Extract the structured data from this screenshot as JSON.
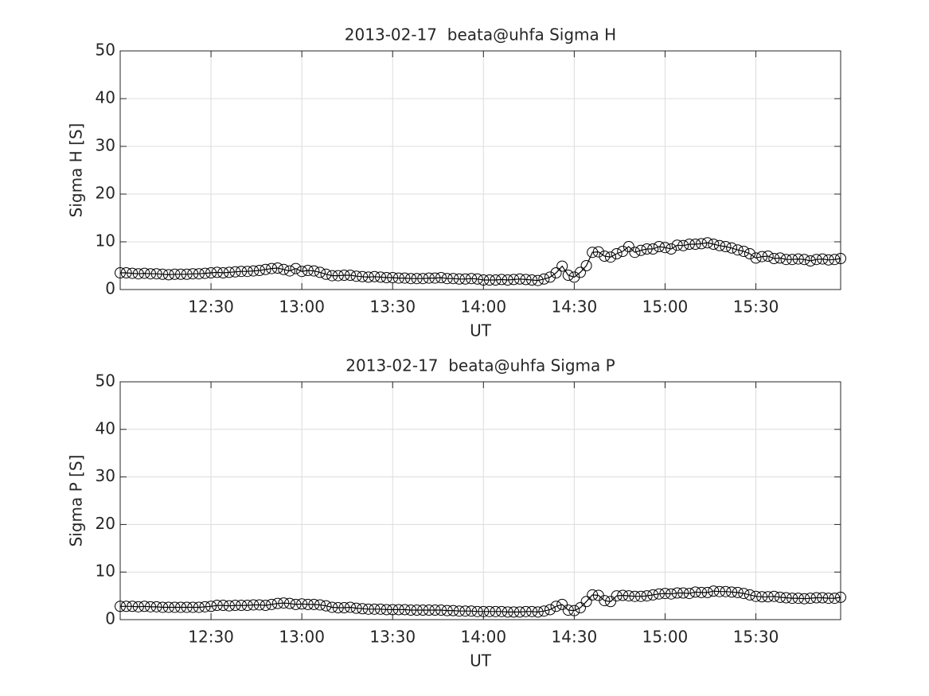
{
  "chart_data": [
    {
      "type": "line",
      "title": "2013-02-17  beata@uhfa Sigma H",
      "xlabel": "UT",
      "ylabel": "Sigma H [S]",
      "x": [
        "12:00",
        "12:02",
        "12:04",
        "12:06",
        "12:08",
        "12:10",
        "12:12",
        "12:14",
        "12:16",
        "12:18",
        "12:20",
        "12:22",
        "12:24",
        "12:26",
        "12:28",
        "12:30",
        "12:32",
        "12:34",
        "12:36",
        "12:38",
        "12:40",
        "12:42",
        "12:44",
        "12:46",
        "12:48",
        "12:50",
        "12:52",
        "12:54",
        "12:56",
        "12:58",
        "13:00",
        "13:02",
        "13:04",
        "13:06",
        "13:08",
        "13:10",
        "13:12",
        "13:14",
        "13:16",
        "13:18",
        "13:20",
        "13:22",
        "13:24",
        "13:26",
        "13:28",
        "13:30",
        "13:32",
        "13:34",
        "13:36",
        "13:38",
        "13:40",
        "13:42",
        "13:44",
        "13:46",
        "13:48",
        "13:50",
        "13:52",
        "13:54",
        "13:56",
        "13:58",
        "14:00",
        "14:02",
        "14:04",
        "14:06",
        "14:08",
        "14:10",
        "14:12",
        "14:14",
        "14:16",
        "14:18",
        "14:20",
        "14:22",
        "14:24",
        "14:26",
        "14:28",
        "14:30",
        "14:32",
        "14:34",
        "14:36",
        "14:38",
        "14:40",
        "14:42",
        "14:44",
        "14:46",
        "14:48",
        "14:50",
        "14:52",
        "14:54",
        "14:56",
        "14:58",
        "15:00",
        "15:02",
        "15:04",
        "15:06",
        "15:08",
        "15:10",
        "15:12",
        "15:14",
        "15:16",
        "15:18",
        "15:20",
        "15:22",
        "15:24",
        "15:26",
        "15:28",
        "15:30",
        "15:32",
        "15:34",
        "15:36",
        "15:38",
        "15:40",
        "15:42",
        "15:44",
        "15:46",
        "15:48",
        "15:50",
        "15:52",
        "15:54",
        "15:56",
        "15:58"
      ],
      "values": [
        3.5,
        3.5,
        3.4,
        3.3,
        3.4,
        3.3,
        3.3,
        3.2,
        3.1,
        3.2,
        3.2,
        3.2,
        3.3,
        3.3,
        3.4,
        3.5,
        3.6,
        3.5,
        3.6,
        3.7,
        3.8,
        3.8,
        3.9,
        4.0,
        4.2,
        4.4,
        4.5,
        4.2,
        3.9,
        4.4,
        3.8,
        4.0,
        3.9,
        3.6,
        3.2,
        2.9,
        2.9,
        3.0,
        3.0,
        2.8,
        2.7,
        2.6,
        2.7,
        2.6,
        2.5,
        2.5,
        2.4,
        2.4,
        2.3,
        2.3,
        2.3,
        2.4,
        2.4,
        2.5,
        2.3,
        2.3,
        2.2,
        2.2,
        2.3,
        2.2,
        2.0,
        2.0,
        2.0,
        2.1,
        2.0,
        2.1,
        2.2,
        2.1,
        2.0,
        1.9,
        2.2,
        2.6,
        3.5,
        4.9,
        3.0,
        2.6,
        3.6,
        5.0,
        7.8,
        7.9,
        7.0,
        6.8,
        7.5,
        8.0,
        9.0,
        7.8,
        8.2,
        8.5,
        8.5,
        9.0,
        8.8,
        8.5,
        9.3,
        9.2,
        9.5,
        9.5,
        9.6,
        9.8,
        9.5,
        9.2,
        9.0,
        8.7,
        8.3,
        8.0,
        7.5,
        6.6,
        6.9,
        7.0,
        6.5,
        6.6,
        6.3,
        6.3,
        6.4,
        6.3,
        6.0,
        6.3,
        6.4,
        6.2,
        6.3,
        6.5
      ],
      "color": "#000000",
      "marker": "circle",
      "xlim": [
        "12:00",
        "15:58"
      ],
      "xticks": [
        "12:30",
        "13:00",
        "13:30",
        "14:00",
        "14:30",
        "15:00",
        "15:30"
      ],
      "ylim": [
        0,
        50
      ],
      "yticks": [
        0,
        10,
        20,
        30,
        40,
        50
      ],
      "grid": true
    },
    {
      "type": "line",
      "title": "2013-02-17  beata@uhfa Sigma P",
      "xlabel": "UT",
      "ylabel": "Sigma P [S]",
      "x": [
        "12:00",
        "12:02",
        "12:04",
        "12:06",
        "12:08",
        "12:10",
        "12:12",
        "12:14",
        "12:16",
        "12:18",
        "12:20",
        "12:22",
        "12:24",
        "12:26",
        "12:28",
        "12:30",
        "12:32",
        "12:34",
        "12:36",
        "12:38",
        "12:40",
        "12:42",
        "12:44",
        "12:46",
        "12:48",
        "12:50",
        "12:52",
        "12:54",
        "12:56",
        "12:58",
        "13:00",
        "13:02",
        "13:04",
        "13:06",
        "13:08",
        "13:10",
        "13:12",
        "13:14",
        "13:16",
        "13:18",
        "13:20",
        "13:22",
        "13:24",
        "13:26",
        "13:28",
        "13:30",
        "13:32",
        "13:34",
        "13:36",
        "13:38",
        "13:40",
        "13:42",
        "13:44",
        "13:46",
        "13:48",
        "13:50",
        "13:52",
        "13:54",
        "13:56",
        "13:58",
        "14:00",
        "14:02",
        "14:04",
        "14:06",
        "14:08",
        "14:10",
        "14:12",
        "14:14",
        "14:16",
        "14:18",
        "14:20",
        "14:22",
        "14:24",
        "14:26",
        "14:28",
        "14:30",
        "14:32",
        "14:34",
        "14:36",
        "14:38",
        "14:40",
        "14:42",
        "14:44",
        "14:46",
        "14:48",
        "14:50",
        "14:52",
        "14:54",
        "14:56",
        "14:58",
        "15:00",
        "15:02",
        "15:04",
        "15:06",
        "15:08",
        "15:10",
        "15:12",
        "15:14",
        "15:16",
        "15:18",
        "15:20",
        "15:22",
        "15:24",
        "15:26",
        "15:28",
        "15:30",
        "15:32",
        "15:34",
        "15:36",
        "15:38",
        "15:40",
        "15:42",
        "15:44",
        "15:46",
        "15:48",
        "15:50",
        "15:52",
        "15:54",
        "15:56",
        "15:58"
      ],
      "values": [
        2.8,
        2.8,
        2.8,
        2.7,
        2.8,
        2.7,
        2.7,
        2.6,
        2.6,
        2.6,
        2.6,
        2.6,
        2.6,
        2.6,
        2.7,
        2.8,
        3.0,
        3.0,
        2.9,
        3.0,
        3.0,
        3.0,
        3.1,
        3.1,
        3.0,
        3.2,
        3.4,
        3.5,
        3.4,
        3.2,
        3.3,
        3.2,
        3.2,
        3.1,
        2.9,
        2.6,
        2.5,
        2.5,
        2.6,
        2.4,
        2.3,
        2.2,
        2.2,
        2.2,
        2.1,
        2.1,
        2.1,
        2.1,
        2.0,
        2.0,
        2.0,
        2.0,
        2.0,
        2.0,
        1.9,
        1.9,
        1.8,
        1.8,
        1.8,
        1.7,
        1.7,
        1.7,
        1.7,
        1.7,
        1.6,
        1.6,
        1.6,
        1.7,
        1.7,
        1.6,
        1.8,
        2.1,
        2.8,
        3.2,
        2.0,
        1.9,
        2.5,
        3.8,
        5.2,
        5.1,
        4.0,
        3.8,
        5.0,
        5.1,
        5.0,
        4.9,
        4.9,
        5.0,
        5.2,
        5.4,
        5.5,
        5.4,
        5.6,
        5.6,
        5.5,
        5.8,
        5.7,
        5.7,
        6.0,
        5.9,
        5.9,
        5.8,
        5.7,
        5.5,
        5.2,
        4.9,
        4.8,
        4.8,
        4.9,
        4.7,
        4.6,
        4.5,
        4.5,
        4.4,
        4.5,
        4.6,
        4.6,
        4.5,
        4.5,
        4.7
      ],
      "color": "#000000",
      "marker": "circle",
      "xlim": [
        "12:00",
        "15:58"
      ],
      "xticks": [
        "12:30",
        "13:00",
        "13:30",
        "14:00",
        "14:30",
        "15:00",
        "15:30"
      ],
      "ylim": [
        0,
        50
      ],
      "yticks": [
        0,
        10,
        20,
        30,
        40,
        50
      ],
      "grid": true
    }
  ]
}
